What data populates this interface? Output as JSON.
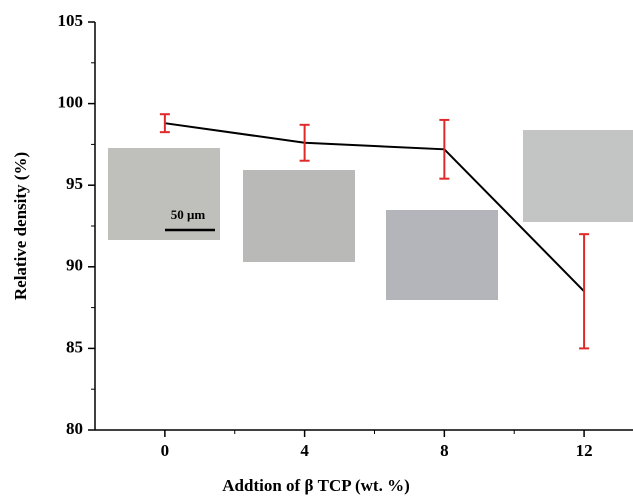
{
  "chart_data": {
    "type": "line",
    "x_label": "Addtion of β TCP (wt. %)",
    "y_label": "Relative density (%)",
    "annotation": "50 μm",
    "x": [
      0,
      4,
      8,
      12
    ],
    "series": [
      {
        "color": "#000000",
        "error_color": "#e02a2a",
        "values": [
          98.8,
          97.6,
          97.2,
          88.5
        ],
        "errors": [
          0.55,
          1.1,
          1.8,
          3.5
        ]
      }
    ],
    "xlim": [
      -2,
      13.4
    ],
    "xticks": [
      0,
      4,
      8,
      12
    ],
    "ylim": [
      80,
      105
    ],
    "yticks": [
      80,
      85,
      90,
      95,
      100,
      105
    ]
  }
}
